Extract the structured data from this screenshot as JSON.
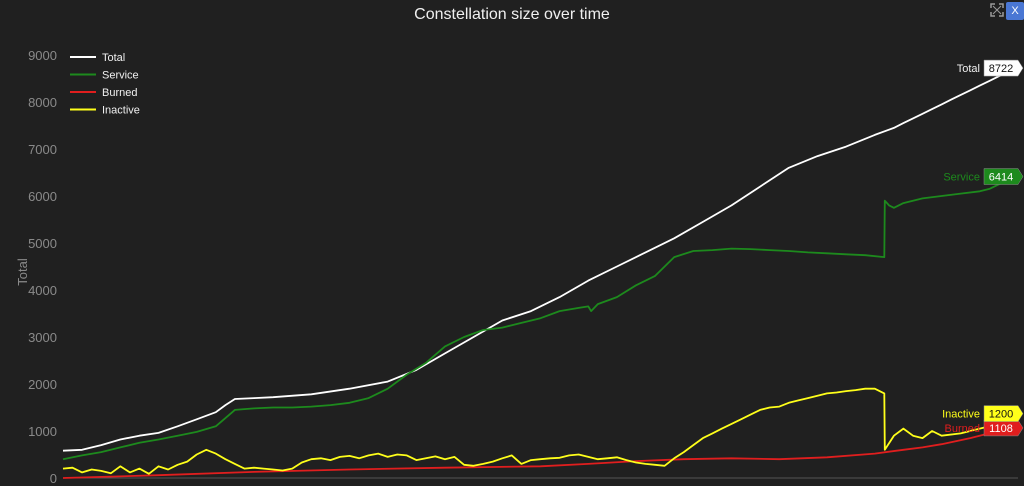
{
  "title": "Constellation size over time",
  "close_label": "X",
  "chart_data": {
    "type": "line",
    "title": "Constellation size over time",
    "ylabel": "Total",
    "xlabel": "",
    "ylim": [
      0,
      9000
    ],
    "y_ticks": [
      "0",
      "1000",
      "2000",
      "3000",
      "4000",
      "5000",
      "6000",
      "7000",
      "8000",
      "9000"
    ],
    "grid": false,
    "legend_position": "top-left",
    "x_range": [
      0,
      100
    ],
    "series": [
      {
        "name": "Total",
        "color": "#ffffff",
        "end_label": "8722",
        "x": [
          0,
          2,
          4,
          6,
          8,
          10,
          12,
          14,
          16,
          17,
          18,
          20,
          22,
          26,
          30,
          34,
          37,
          40,
          43,
          46,
          49,
          52,
          55,
          58,
          61,
          64,
          67,
          70,
          73,
          76,
          79,
          82,
          85,
          87,
          88,
          89,
          90,
          91,
          92,
          93,
          94,
          95,
          96,
          97,
          98,
          100
        ],
        "values": [
          580,
          600,
          700,
          820,
          900,
          960,
          1100,
          1250,
          1400,
          1550,
          1680,
          1700,
          1720,
          1780,
          1900,
          2050,
          2300,
          2650,
          3000,
          3350,
          3550,
          3850,
          4200,
          4500,
          4800,
          5100,
          5450,
          5800,
          6200,
          6600,
          6850,
          7050,
          7300,
          7450,
          7550,
          7650,
          7750,
          7850,
          7950,
          8050,
          8150,
          8250,
          8350,
          8450,
          8550,
          8722
        ]
      },
      {
        "name": "Service",
        "color": "#1d8a1d",
        "end_label": "6414",
        "x": [
          0,
          2,
          4,
          6,
          8,
          10,
          12,
          14,
          16,
          18,
          20,
          22,
          24,
          26,
          28,
          30,
          32,
          34,
          36,
          38,
          40,
          42,
          44,
          46,
          48,
          50,
          52,
          54,
          55,
          55.3,
          56,
          58,
          60,
          62,
          64,
          66,
          68,
          70,
          72,
          74,
          76,
          78,
          80,
          82,
          84,
          86,
          86.05,
          86.5,
          87,
          88,
          90,
          92,
          94,
          96,
          97,
          98,
          100
        ],
        "values": [
          400,
          480,
          550,
          650,
          750,
          820,
          900,
          980,
          1100,
          1450,
          1480,
          1500,
          1500,
          1520,
          1550,
          1600,
          1700,
          1900,
          2200,
          2450,
          2800,
          3000,
          3150,
          3200,
          3300,
          3400,
          3550,
          3620,
          3650,
          3550,
          3700,
          3850,
          4100,
          4300,
          4700,
          4830,
          4850,
          4880,
          4870,
          4850,
          4830,
          4800,
          4780,
          4760,
          4740,
          4700,
          5900,
          5800,
          5750,
          5850,
          5950,
          6000,
          6050,
          6100,
          6150,
          6250,
          6414
        ]
      },
      {
        "name": "Burned",
        "color": "#e01e1e",
        "end_label": "1108",
        "x": [
          0,
          10,
          20,
          30,
          40,
          50,
          55,
          60,
          65,
          70,
          75,
          80,
          85,
          88,
          90,
          92,
          95,
          100
        ],
        "values": [
          0,
          60,
          130,
          180,
          220,
          250,
          300,
          360,
          400,
          420,
          400,
          440,
          520,
          600,
          650,
          720,
          850,
          1108
        ]
      },
      {
        "name": "Inactive",
        "color": "#ffff1a",
        "end_label": "1200",
        "x": [
          0,
          1,
          2,
          3,
          4,
          5,
          6,
          7,
          8,
          9,
          10,
          11,
          12,
          13,
          14,
          15,
          16,
          17,
          18,
          19,
          20,
          21,
          22,
          23,
          24,
          25,
          26,
          27,
          28,
          29,
          30,
          31,
          32,
          33,
          34,
          35,
          36,
          37,
          38,
          39,
          40,
          41,
          42,
          43,
          44,
          45,
          46,
          47,
          48,
          49,
          50,
          51,
          52,
          53,
          54,
          55,
          56,
          57,
          58,
          59,
          60,
          61,
          62,
          63,
          64,
          65,
          66,
          67,
          68,
          69,
          70,
          71,
          72,
          73,
          74,
          75,
          76,
          77,
          78,
          79,
          80,
          81,
          82,
          83,
          84,
          85,
          86,
          86.05,
          87,
          88,
          89,
          90,
          91,
          92,
          94,
          96,
          98,
          100
        ],
        "values": [
          200,
          220,
          120,
          180,
          150,
          100,
          250,
          120,
          200,
          90,
          250,
          180,
          280,
          350,
          500,
          600,
          520,
          400,
          300,
          200,
          220,
          200,
          180,
          160,
          200,
          330,
          400,
          420,
          380,
          450,
          470,
          420,
          480,
          520,
          450,
          500,
          480,
          380,
          420,
          460,
          400,
          450,
          280,
          260,
          300,
          350,
          420,
          480,
          300,
          380,
          400,
          420,
          430,
          480,
          500,
          450,
          400,
          420,
          440,
          380,
          330,
          300,
          280,
          260,
          420,
          550,
          700,
          850,
          950,
          1050,
          1150,
          1250,
          1350,
          1450,
          1500,
          1520,
          1600,
          1650,
          1700,
          1750,
          1800,
          1820,
          1850,
          1870,
          1900,
          1900,
          1800,
          600,
          900,
          1050,
          900,
          850,
          1000,
          900,
          950,
          1050,
          1150,
          1200
        ]
      }
    ]
  }
}
